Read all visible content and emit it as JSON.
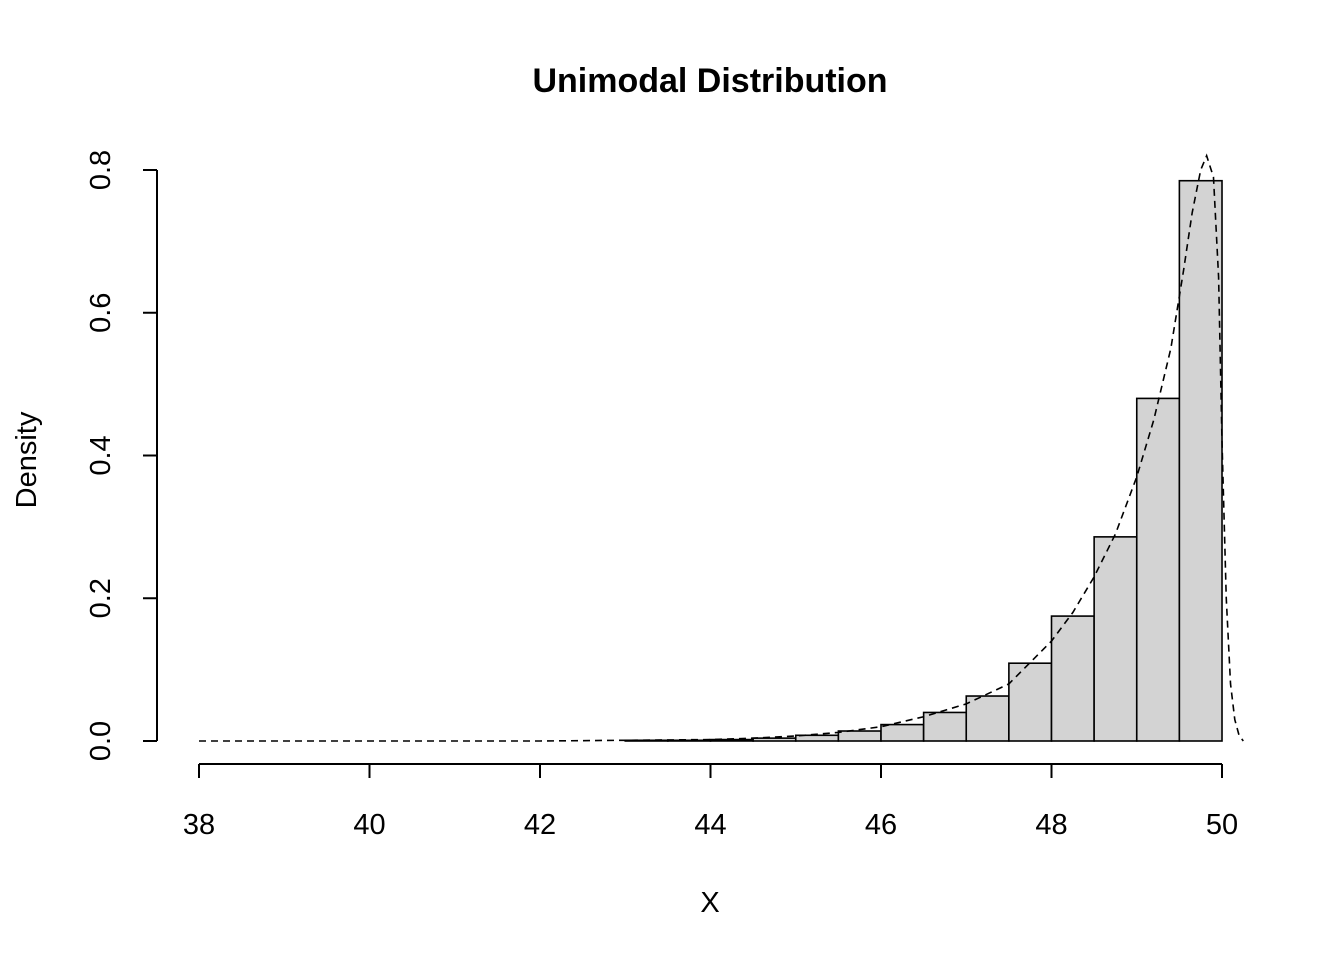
{
  "chart_data": {
    "type": "bar",
    "title": "Unimodal Distribution",
    "xlabel": "X",
    "ylabel": "Density",
    "xlim": [
      38,
      50
    ],
    "ylim": [
      0,
      0.8
    ],
    "x_ticks": [
      "38",
      "40",
      "42",
      "44",
      "46",
      "48",
      "50"
    ],
    "y_ticks": [
      "0.0",
      "0.2",
      "0.4",
      "0.6",
      "0.8"
    ],
    "bar_fill": "#d3d3d3",
    "grid": false,
    "bins": [
      {
        "from": 38.0,
        "to": 38.5,
        "density": 0
      },
      {
        "from": 38.5,
        "to": 39.0,
        "density": 0
      },
      {
        "from": 39.0,
        "to": 39.5,
        "density": 0
      },
      {
        "from": 39.5,
        "to": 40.0,
        "density": 0
      },
      {
        "from": 40.0,
        "to": 40.5,
        "density": 0
      },
      {
        "from": 40.5,
        "to": 41.0,
        "density": 0
      },
      {
        "from": 41.0,
        "to": 41.5,
        "density": 0
      },
      {
        "from": 41.5,
        "to": 42.0,
        "density": 0
      },
      {
        "from": 42.0,
        "to": 42.5,
        "density": 0
      },
      {
        "from": 42.5,
        "to": 43.0,
        "density": 0
      },
      {
        "from": 43.0,
        "to": 43.5,
        "density": 0.001
      },
      {
        "from": 43.5,
        "to": 44.0,
        "density": 0.001
      },
      {
        "from": 44.0,
        "to": 44.5,
        "density": 0.002
      },
      {
        "from": 44.5,
        "to": 45.0,
        "density": 0.004
      },
      {
        "from": 45.0,
        "to": 45.5,
        "density": 0.008
      },
      {
        "from": 45.5,
        "to": 46.0,
        "density": 0.014
      },
      {
        "from": 46.0,
        "to": 46.5,
        "density": 0.023
      },
      {
        "from": 46.5,
        "to": 47.0,
        "density": 0.04
      },
      {
        "from": 47.0,
        "to": 47.5,
        "density": 0.063
      },
      {
        "from": 47.5,
        "to": 48.0,
        "density": 0.109
      },
      {
        "from": 48.0,
        "to": 48.5,
        "density": 0.175
      },
      {
        "from": 48.5,
        "to": 49.0,
        "density": 0.286
      },
      {
        "from": 49.0,
        "to": 49.5,
        "density": 0.48
      },
      {
        "from": 49.5,
        "to": 50.0,
        "density": 0.785
      }
    ],
    "density_curve": {
      "x": [
        38.0,
        42.0,
        43.0,
        44.0,
        44.5,
        45.0,
        45.5,
        46.0,
        46.5,
        47.0,
        47.5,
        48.0,
        48.25,
        48.5,
        48.75,
        49.0,
        49.2,
        49.4,
        49.55,
        49.65,
        49.75,
        49.82,
        49.9,
        49.96,
        50.0,
        50.05,
        50.1,
        50.15,
        50.2,
        50.25
      ],
      "y": [
        0,
        0,
        0.001,
        0.002,
        0.004,
        0.007,
        0.012,
        0.02,
        0.034,
        0.052,
        0.08,
        0.14,
        0.18,
        0.23,
        0.29,
        0.37,
        0.45,
        0.55,
        0.66,
        0.74,
        0.8,
        0.82,
        0.79,
        0.65,
        0.42,
        0.2,
        0.08,
        0.03,
        0.008,
        0
      ]
    }
  }
}
